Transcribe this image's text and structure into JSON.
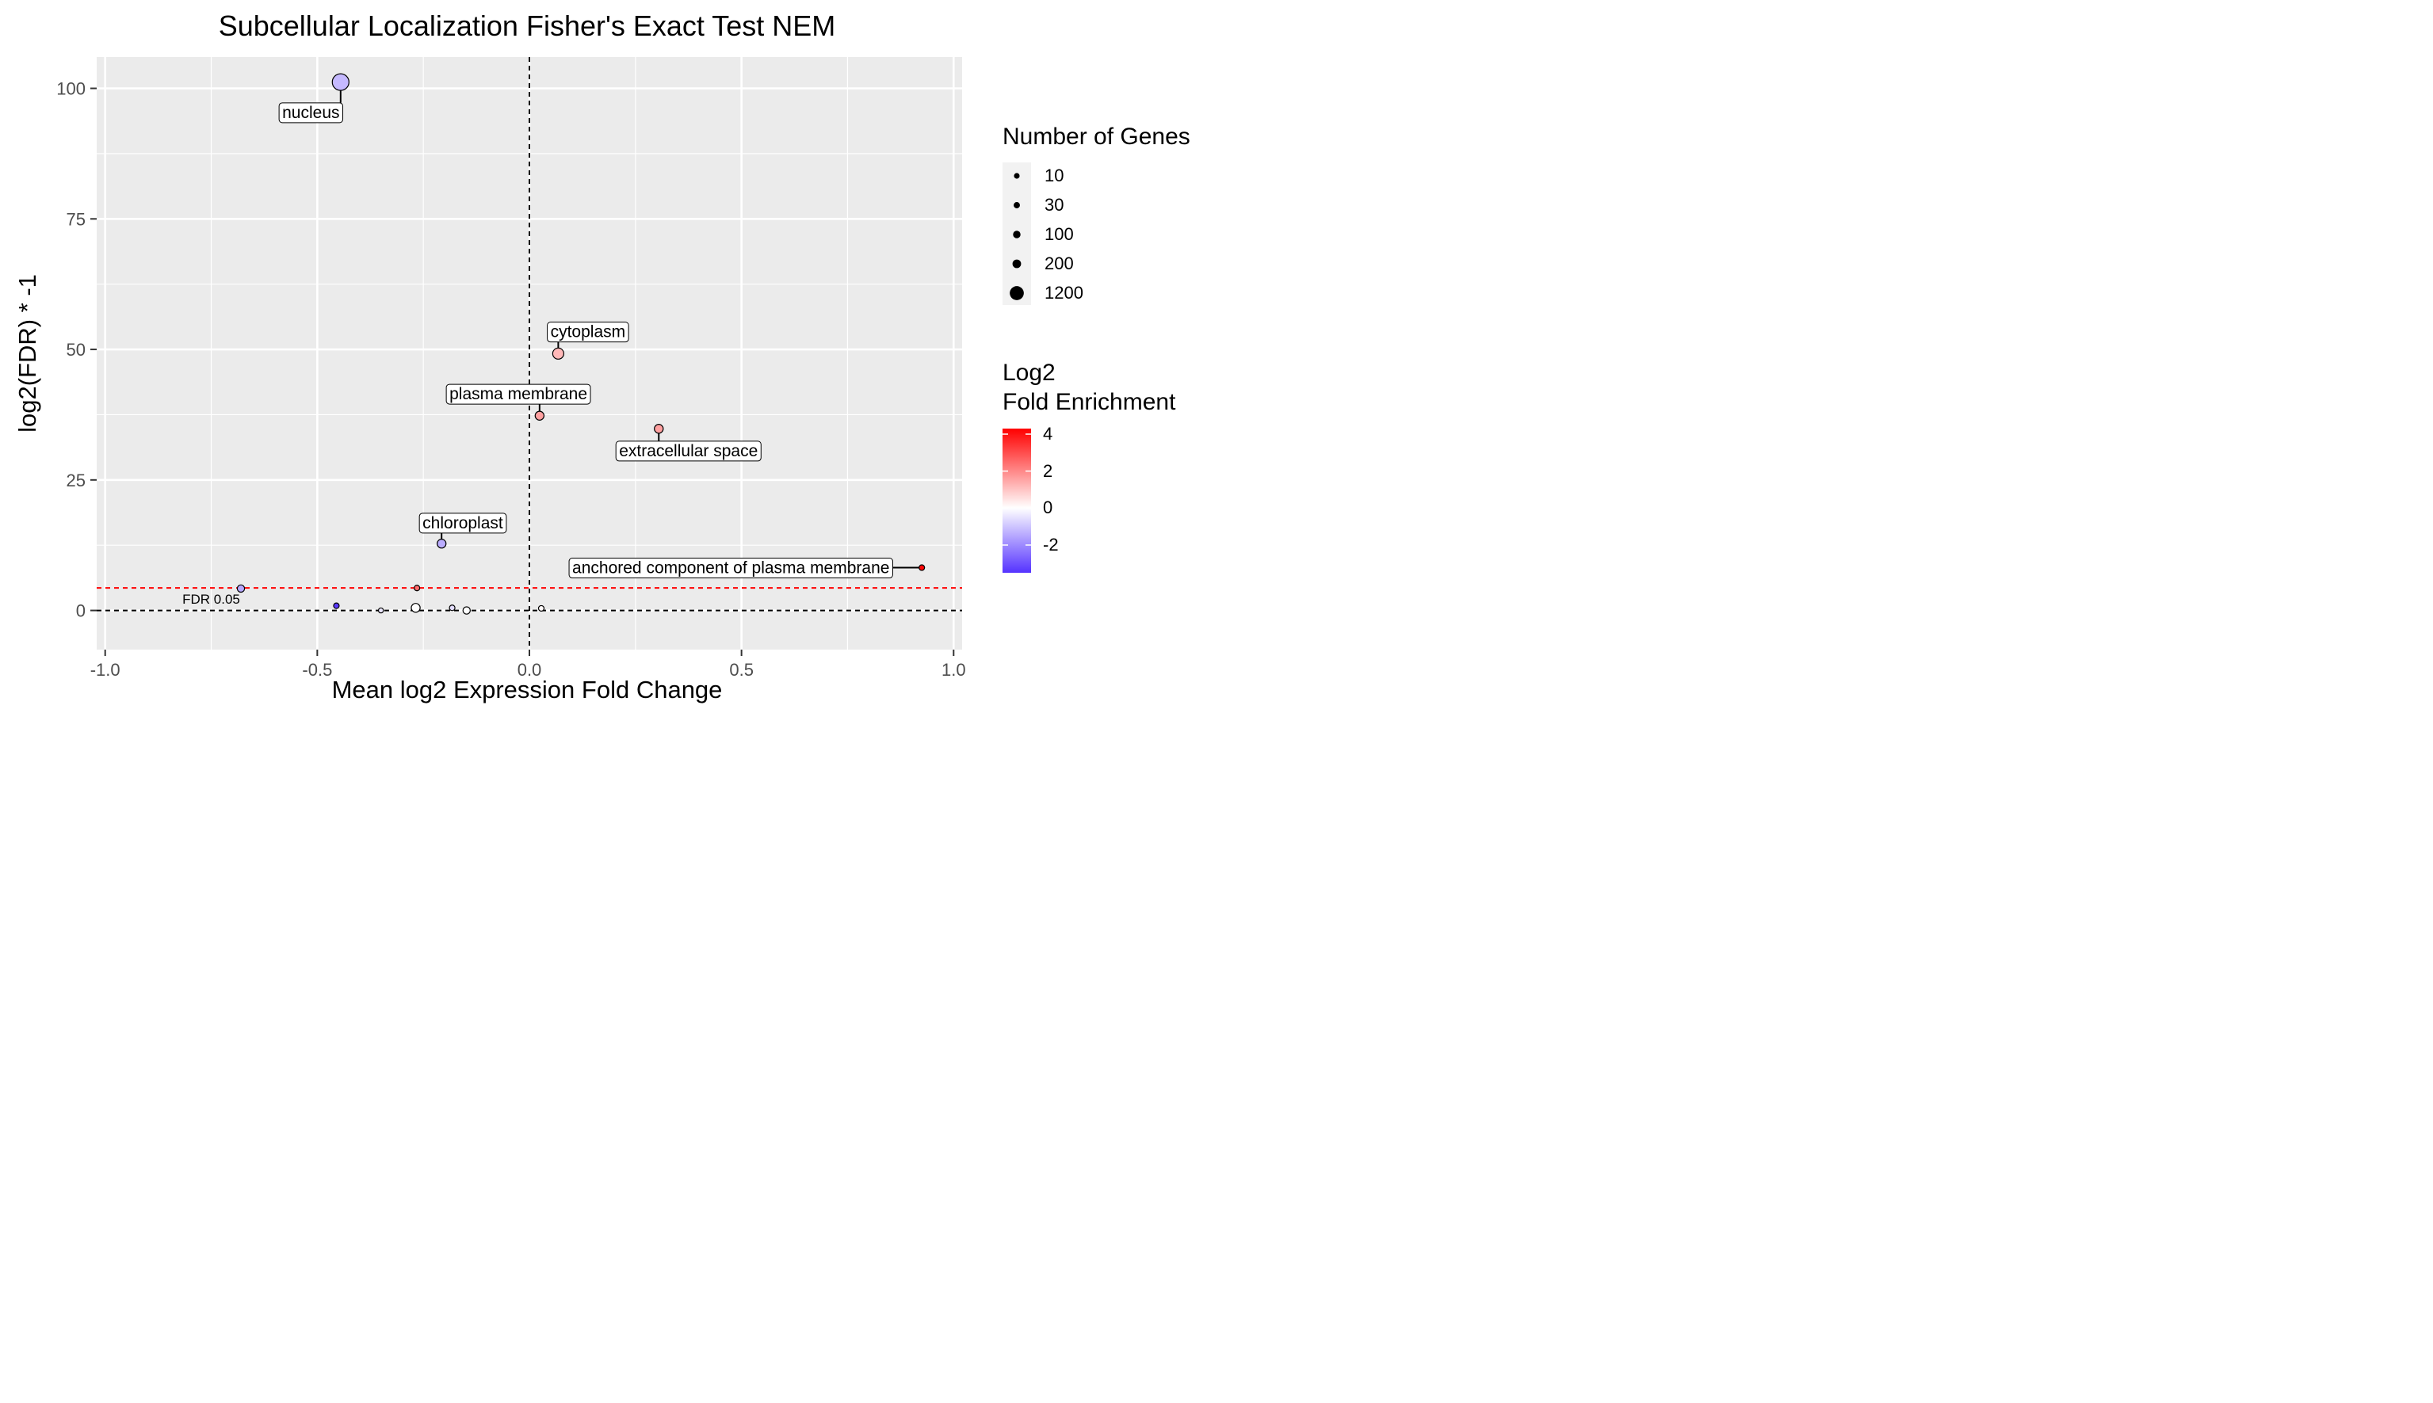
{
  "chart_data": {
    "type": "scatter",
    "title": "Subcellular Localization Fisher's Exact Test NEM",
    "xlabel": "Mean log2 Expression Fold Change",
    "ylabel": "log2(FDR) * -1",
    "xlim": [
      -1.02,
      1.02
    ],
    "ylim": [
      -7.5,
      106
    ],
    "xticks": [
      -1.0,
      -0.5,
      0.0,
      0.5,
      1.0
    ],
    "xtick_labels": [
      "-1.0",
      "-0.5",
      "0.0",
      "0.5",
      "1.0"
    ],
    "yticks": [
      0,
      25,
      50,
      75,
      100
    ],
    "ytick_labels": [
      "0",
      "25",
      "50",
      "75",
      "100"
    ],
    "grid": true,
    "reference_lines": [
      {
        "orientation": "vertical",
        "x": 0,
        "color": "#000000",
        "dashed": true
      },
      {
        "orientation": "horizontal",
        "y": 0,
        "color": "#000000",
        "dashed": true
      },
      {
        "orientation": "horizontal",
        "y": 4.32,
        "color": "#ff0000",
        "dashed": true,
        "label": "FDR 0.05"
      }
    ],
    "points": [
      {
        "label": "nucleus",
        "x": -0.445,
        "y": 101.2,
        "genes": 1200,
        "log2_enrichment": -1.2
      },
      {
        "label": "cytoplasm",
        "x": 0.068,
        "y": 49.2,
        "genes": 400,
        "log2_enrichment": 1.2
      },
      {
        "label": "plasma membrane",
        "x": 0.024,
        "y": 37.3,
        "genes": 200,
        "log2_enrichment": 1.6
      },
      {
        "label": "extracellular space",
        "x": 0.305,
        "y": 34.8,
        "genes": 200,
        "log2_enrichment": 1.6
      },
      {
        "label": "chloroplast",
        "x": -0.207,
        "y": 12.8,
        "genes": 200,
        "log2_enrichment": -1.4
      },
      {
        "label": "anchored component of plasma membrane",
        "x": 0.925,
        "y": 8.2,
        "genes": 30,
        "log2_enrichment": 4.2
      },
      {
        "label": "",
        "x": -0.68,
        "y": 4.2,
        "genes": 100,
        "log2_enrichment": -1.5
      },
      {
        "label": "",
        "x": -0.265,
        "y": 4.3,
        "genes": 30,
        "log2_enrichment": 2.5
      },
      {
        "label": "",
        "x": -0.455,
        "y": 0.9,
        "genes": 30,
        "log2_enrichment": -3.4
      },
      {
        "label": "",
        "x": -0.35,
        "y": 0.0,
        "genes": 15,
        "log2_enrichment": -0.4
      },
      {
        "label": "",
        "x": -0.268,
        "y": 0.5,
        "genes": 200,
        "log2_enrichment": 0.0
      },
      {
        "label": "",
        "x": -0.182,
        "y": 0.5,
        "genes": 30,
        "log2_enrichment": -0.6
      },
      {
        "label": "",
        "x": -0.148,
        "y": 0.0,
        "genes": 100,
        "log2_enrichment": 0.0
      },
      {
        "label": "",
        "x": 0.028,
        "y": 0.4,
        "genes": 30,
        "log2_enrichment": 0.1
      }
    ],
    "size_legend": {
      "title": "Number of Genes",
      "entries": [
        {
          "label": "10",
          "value": 10
        },
        {
          "label": "30",
          "value": 30
        },
        {
          "label": "100",
          "value": 100
        },
        {
          "label": "200",
          "value": 200
        },
        {
          "label": "1200",
          "value": 1200
        }
      ]
    },
    "color_legend": {
      "title_line1": "Log2",
      "title_line2": "Fold Enrichment",
      "range": [
        -3.5,
        4.3
      ],
      "tick_values": [
        4,
        2,
        0,
        -2
      ],
      "tick_labels": [
        "4",
        "2",
        "0",
        "-2"
      ],
      "low_color": "#5533ff",
      "mid_color": "#ffffff",
      "high_color": "#ff0000"
    },
    "colors": {
      "panel_background": "#ebebeb",
      "grid": "#ffffff",
      "fdr_line": "#ff0000"
    }
  }
}
